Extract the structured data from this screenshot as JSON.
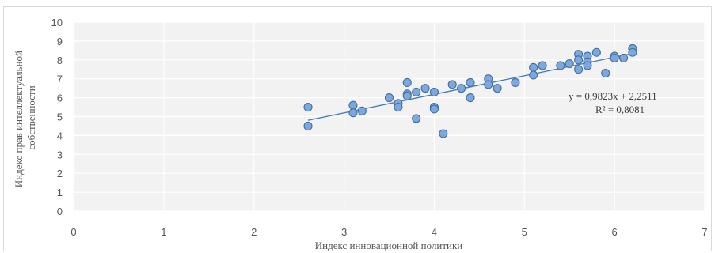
{
  "chart_data": {
    "type": "scatter",
    "title": "",
    "xlabel": "Индекс инновационной политики",
    "ylabel_lines": [
      "Индекс прав интеллектуальной",
      "собственности"
    ],
    "xlim": [
      0,
      7
    ],
    "ylim": [
      0,
      10
    ],
    "x_ticks": [
      "0",
      "1",
      "2",
      "3",
      "4",
      "5",
      "6",
      "7"
    ],
    "y_ticks": [
      "0",
      "1",
      "2",
      "3",
      "4",
      "5",
      "6",
      "7",
      "8",
      "9",
      "10"
    ],
    "grid": true,
    "legend": "none",
    "marker_color": "#7ea6e0",
    "marker_edge_color": "#41719c",
    "trendline_color": "#4a7ebb",
    "trendline": {
      "type": "linear",
      "slope": 0.9823,
      "intercept": 2.2511,
      "x_range": [
        2.6,
        6.2
      ],
      "equation_label": "y = 0,9823x + 2,2511",
      "r2_label": "R² = 0,8081"
    },
    "points": [
      {
        "x": 2.6,
        "y": 5.5
      },
      {
        "x": 2.6,
        "y": 4.5
      },
      {
        "x": 3.1,
        "y": 5.6
      },
      {
        "x": 3.1,
        "y": 5.2
      },
      {
        "x": 3.2,
        "y": 5.3
      },
      {
        "x": 3.5,
        "y": 6.0
      },
      {
        "x": 3.6,
        "y": 5.7
      },
      {
        "x": 3.6,
        "y": 5.5
      },
      {
        "x": 3.7,
        "y": 6.8
      },
      {
        "x": 3.7,
        "y": 6.2
      },
      {
        "x": 3.7,
        "y": 6.1
      },
      {
        "x": 3.8,
        "y": 6.3
      },
      {
        "x": 3.8,
        "y": 4.9
      },
      {
        "x": 3.9,
        "y": 6.5
      },
      {
        "x": 4.0,
        "y": 6.3
      },
      {
        "x": 4.0,
        "y": 5.5
      },
      {
        "x": 4.0,
        "y": 5.4
      },
      {
        "x": 4.1,
        "y": 4.1
      },
      {
        "x": 4.2,
        "y": 6.7
      },
      {
        "x": 4.3,
        "y": 6.5
      },
      {
        "x": 4.4,
        "y": 6.8
      },
      {
        "x": 4.4,
        "y": 6.0
      },
      {
        "x": 4.6,
        "y": 7.0
      },
      {
        "x": 4.6,
        "y": 6.7
      },
      {
        "x": 4.7,
        "y": 6.5
      },
      {
        "x": 4.9,
        "y": 6.8
      },
      {
        "x": 5.1,
        "y": 7.6
      },
      {
        "x": 5.1,
        "y": 7.2
      },
      {
        "x": 5.2,
        "y": 7.7
      },
      {
        "x": 5.4,
        "y": 7.7
      },
      {
        "x": 5.5,
        "y": 7.8
      },
      {
        "x": 5.6,
        "y": 8.3
      },
      {
        "x": 5.6,
        "y": 8.0
      },
      {
        "x": 5.6,
        "y": 7.5
      },
      {
        "x": 5.7,
        "y": 8.2
      },
      {
        "x": 5.7,
        "y": 7.9
      },
      {
        "x": 5.7,
        "y": 7.7
      },
      {
        "x": 5.8,
        "y": 8.4
      },
      {
        "x": 5.9,
        "y": 7.3
      },
      {
        "x": 6.0,
        "y": 8.2
      },
      {
        "x": 6.0,
        "y": 8.1
      },
      {
        "x": 6.1,
        "y": 8.1
      },
      {
        "x": 6.2,
        "y": 8.6
      },
      {
        "x": 6.2,
        "y": 8.4
      }
    ]
  }
}
